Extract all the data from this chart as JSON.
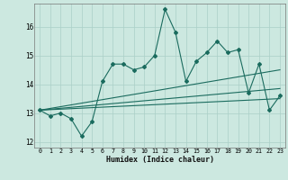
{
  "xlabel": "Humidex (Indice chaleur)",
  "ylabel": "",
  "xlim": [
    -0.5,
    23.5
  ],
  "ylim": [
    11.8,
    16.8
  ],
  "yticks": [
    12,
    13,
    14,
    15,
    16
  ],
  "xticks": [
    0,
    1,
    2,
    3,
    4,
    5,
    6,
    7,
    8,
    9,
    10,
    11,
    12,
    13,
    14,
    15,
    16,
    17,
    18,
    19,
    20,
    21,
    22,
    23
  ],
  "bg_color": "#cce8e0",
  "grid_color": "#aacfc7",
  "line_color": "#1a6b5e",
  "zigzag": [
    13.1,
    12.9,
    13.0,
    12.8,
    12.2,
    12.7,
    14.1,
    14.7,
    14.7,
    14.5,
    14.6,
    15.0,
    16.6,
    15.8,
    14.1,
    14.8,
    15.1,
    15.5,
    15.1,
    15.2,
    13.7,
    14.7,
    13.1,
    13.6
  ],
  "trend1_start": 13.1,
  "trend1_end": 14.5,
  "trend2_start": 13.1,
  "trend2_end": 13.85,
  "trend3_start": 13.1,
  "trend3_end": 13.5
}
